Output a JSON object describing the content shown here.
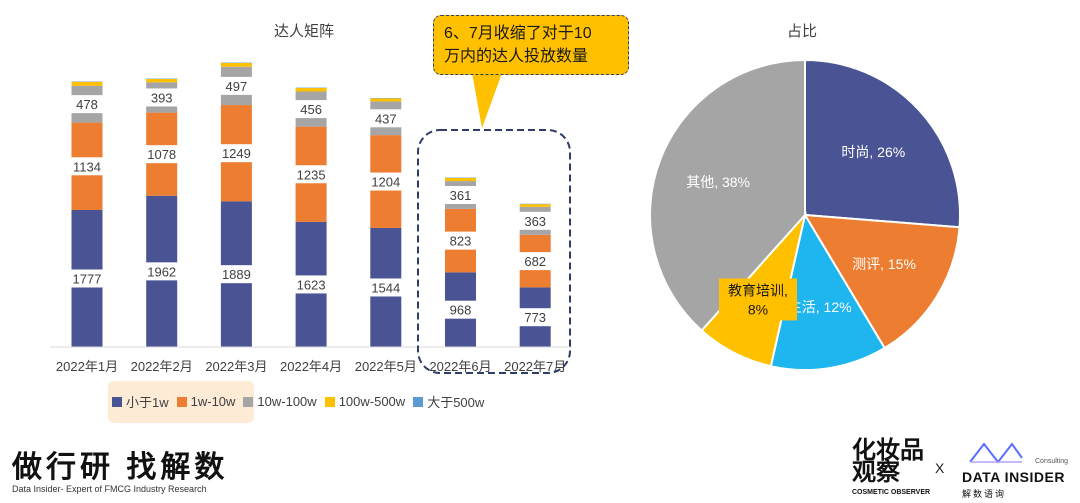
{
  "chart_data": [
    {
      "type": "bar",
      "stacked": true,
      "title": "达人矩阵",
      "categories": [
        "2022年1月",
        "2022年2月",
        "2022年3月",
        "2022年4月",
        "2022年5月",
        "2022年6月",
        "2022年7月"
      ],
      "series": [
        {
          "name": "小于1w",
          "color": "#4a5494",
          "values": [
            1777,
            1962,
            1889,
            1623,
            1544,
            968,
            773
          ]
        },
        {
          "name": "1w-10w",
          "color": "#ed7d31",
          "values": [
            1134,
            1078,
            1249,
            1235,
            1204,
            823,
            682
          ]
        },
        {
          "name": "10w-100w",
          "color": "#a5a5a5",
          "values": [
            478,
            393,
            497,
            456,
            437,
            361,
            363
          ]
        },
        {
          "name": "100w-500w",
          "color": "#ffc000",
          "values": [
            50,
            45,
            50,
            45,
            40,
            40,
            35
          ]
        },
        {
          "name": "大于500w",
          "color": "#5b9bd5",
          "values": [
            5,
            5,
            5,
            5,
            5,
            5,
            5
          ]
        }
      ],
      "legend_position": "bottom"
    },
    {
      "type": "pie",
      "title": "占比",
      "slices": [
        {
          "label": "时尚, 26%",
          "value": 26,
          "color": "#4a5494"
        },
        {
          "label": "测评, 15%",
          "value": 15,
          "color": "#ed7d31"
        },
        {
          "label": "生活, 12%",
          "value": 12,
          "color": "#1fb5ee"
        },
        {
          "label": "教育培训,",
          "label2": "8%",
          "value": 8,
          "color": "#ffc000"
        },
        {
          "label": "其他, 38%",
          "value": 38,
          "color": "#a5a5a5"
        }
      ]
    }
  ],
  "callout": {
    "line1": "6、7月收缩了对于10",
    "line2": "万内的达人投放数量"
  },
  "brand": {
    "cn": "做行研 找解数",
    "en": "Data Insider- Expert of FMCG Industry Research"
  },
  "logos": {
    "cosmetic_cn": "化妆品观察",
    "cosmetic_en": "COSMETIC OBSERVER",
    "x": "X",
    "di": "DATA INSIDER",
    "di_cn": "解数语询",
    "di_consulting": "Consulting"
  }
}
